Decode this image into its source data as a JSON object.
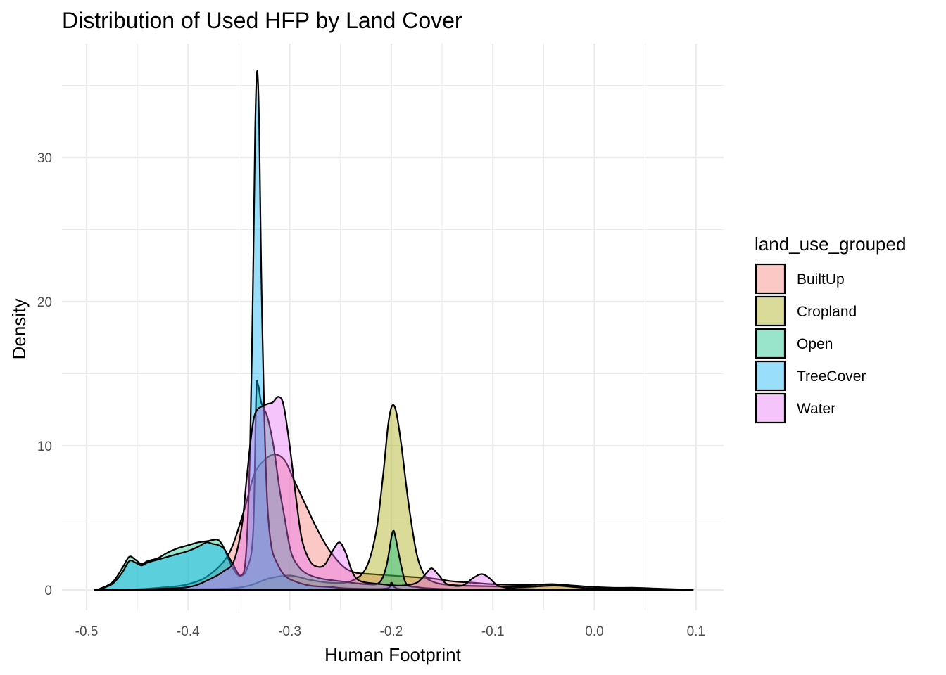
{
  "chart_data": {
    "type": "area",
    "title": "Distribution of Used HFP by Land Cover",
    "xlabel": "Human Footprint",
    "ylabel": "Density",
    "xlim": [
      -0.5,
      0.1
    ],
    "ylim": [
      0,
      36
    ],
    "x_ticks": [
      -0.5,
      -0.4,
      -0.3,
      -0.2,
      -0.1,
      0.0,
      0.1
    ],
    "x_tick_labels": [
      "-0.5",
      "-0.4",
      "-0.3",
      "-0.2",
      "-0.1",
      "0.0",
      "0.1"
    ],
    "y_ticks": [
      0,
      10,
      20,
      30
    ],
    "y_tick_labels": [
      "0",
      "10",
      "20",
      "30"
    ],
    "grid": true,
    "legend_position": "right",
    "legend_title": "land_use_grouped",
    "fill_opacity": 0.4,
    "series": [
      {
        "name": "BuiltUp",
        "color": "#F8766D",
        "points": [
          [
            -0.492,
            0
          ],
          [
            -0.45,
            0.05
          ],
          [
            -0.42,
            0.2
          ],
          [
            -0.4,
            0.4
          ],
          [
            -0.38,
            1.0
          ],
          [
            -0.36,
            2.5
          ],
          [
            -0.345,
            5.5
          ],
          [
            -0.335,
            8.0
          ],
          [
            -0.325,
            9.0
          ],
          [
            -0.315,
            9.4
          ],
          [
            -0.305,
            9.0
          ],
          [
            -0.295,
            7.5
          ],
          [
            -0.285,
            6.0
          ],
          [
            -0.275,
            4.5
          ],
          [
            -0.265,
            3.2
          ],
          [
            -0.255,
            2.2
          ],
          [
            -0.245,
            1.5
          ],
          [
            -0.235,
            1.2
          ],
          [
            -0.22,
            1.1
          ],
          [
            -0.2,
            1.0
          ],
          [
            -0.18,
            0.9
          ],
          [
            -0.16,
            0.8
          ],
          [
            -0.14,
            0.6
          ],
          [
            -0.12,
            0.5
          ],
          [
            -0.1,
            0.4
          ],
          [
            -0.08,
            0.35
          ],
          [
            -0.06,
            0.35
          ],
          [
            -0.04,
            0.4
          ],
          [
            -0.02,
            0.3
          ],
          [
            0,
            0.2
          ],
          [
            0.02,
            0.15
          ],
          [
            0.04,
            0.15
          ],
          [
            0.06,
            0.1
          ],
          [
            0.08,
            0.05
          ],
          [
            0.097,
            0
          ]
        ]
      },
      {
        "name": "Cropland",
        "color": "#A3A500",
        "points": [
          [
            -0.49,
            0
          ],
          [
            -0.4,
            0.05
          ],
          [
            -0.36,
            0.1
          ],
          [
            -0.34,
            0.3
          ],
          [
            -0.32,
            0.8
          ],
          [
            -0.3,
            1.0
          ],
          [
            -0.28,
            0.7
          ],
          [
            -0.26,
            0.5
          ],
          [
            -0.24,
            0.6
          ],
          [
            -0.225,
            1.5
          ],
          [
            -0.215,
            4.0
          ],
          [
            -0.208,
            8.0
          ],
          [
            -0.203,
            11.5
          ],
          [
            -0.199,
            12.8
          ],
          [
            -0.195,
            12.3
          ],
          [
            -0.19,
            10.0
          ],
          [
            -0.183,
            6.0
          ],
          [
            -0.175,
            2.5
          ],
          [
            -0.167,
            1.0
          ],
          [
            -0.16,
            0.6
          ],
          [
            -0.15,
            0.4
          ],
          [
            -0.13,
            0.3
          ],
          [
            -0.1,
            0.25
          ],
          [
            -0.07,
            0.2
          ],
          [
            -0.04,
            0.3
          ],
          [
            -0.02,
            0.2
          ],
          [
            0,
            0.1
          ],
          [
            0.03,
            0.1
          ],
          [
            0.06,
            0.05
          ],
          [
            0.09,
            0
          ]
        ]
      },
      {
        "name": "Open",
        "color": "#00BF7D",
        "points": [
          [
            -0.49,
            0
          ],
          [
            -0.475,
            0.5
          ],
          [
            -0.465,
            1.5
          ],
          [
            -0.458,
            2.3
          ],
          [
            -0.452,
            2.1
          ],
          [
            -0.446,
            1.8
          ],
          [
            -0.44,
            2.0
          ],
          [
            -0.43,
            2.2
          ],
          [
            -0.42,
            2.6
          ],
          [
            -0.41,
            2.9
          ],
          [
            -0.4,
            3.1
          ],
          [
            -0.39,
            3.3
          ],
          [
            -0.38,
            3.4
          ],
          [
            -0.372,
            3.5
          ],
          [
            -0.368,
            3.3
          ],
          [
            -0.364,
            2.8
          ],
          [
            -0.358,
            1.8
          ],
          [
            -0.35,
            1.0
          ],
          [
            -0.342,
            1.5
          ],
          [
            -0.336,
            4.0
          ],
          [
            -0.333,
            13.5
          ],
          [
            -0.331,
            14.2
          ],
          [
            -0.328,
            13.0
          ],
          [
            -0.322,
            12.0
          ],
          [
            -0.316,
            10.0
          ],
          [
            -0.31,
            7.0
          ],
          [
            -0.305,
            5.0
          ],
          [
            -0.3,
            3.0
          ],
          [
            -0.295,
            2.0
          ],
          [
            -0.285,
            1.2
          ],
          [
            -0.27,
            0.8
          ],
          [
            -0.25,
            0.6
          ],
          [
            -0.225,
            0.4
          ],
          [
            -0.212,
            0.5
          ],
          [
            -0.205,
            1.6
          ],
          [
            -0.2,
            3.6
          ],
          [
            -0.198,
            4.1
          ],
          [
            -0.196,
            3.7
          ],
          [
            -0.19,
            1.6
          ],
          [
            -0.185,
            0.4
          ],
          [
            -0.175,
            0.2
          ],
          [
            -0.16,
            0.1
          ],
          [
            -0.14,
            0.05
          ],
          [
            -0.12,
            0
          ]
        ]
      },
      {
        "name": "TreeCover",
        "color": "#00B0F6",
        "points": [
          [
            -0.49,
            0
          ],
          [
            -0.475,
            0.4
          ],
          [
            -0.465,
            1.2
          ],
          [
            -0.458,
            2.0
          ],
          [
            -0.452,
            1.9
          ],
          [
            -0.446,
            1.7
          ],
          [
            -0.44,
            1.9
          ],
          [
            -0.43,
            2.1
          ],
          [
            -0.42,
            2.3
          ],
          [
            -0.41,
            2.5
          ],
          [
            -0.4,
            2.7
          ],
          [
            -0.39,
            3.0
          ],
          [
            -0.382,
            3.3
          ],
          [
            -0.376,
            3.2
          ],
          [
            -0.37,
            3.1
          ],
          [
            -0.364,
            2.8
          ],
          [
            -0.356,
            1.8
          ],
          [
            -0.348,
            1.0
          ],
          [
            -0.343,
            2.5
          ],
          [
            -0.339,
            10.0
          ],
          [
            -0.336,
            22.0
          ],
          [
            -0.334,
            32.0
          ],
          [
            -0.332,
            36.0
          ],
          [
            -0.33,
            32.0
          ],
          [
            -0.328,
            22.0
          ],
          [
            -0.325,
            12.0
          ],
          [
            -0.322,
            6.0
          ],
          [
            -0.318,
            3.0
          ],
          [
            -0.312,
            1.8
          ],
          [
            -0.305,
            1.0
          ],
          [
            -0.295,
            0.6
          ],
          [
            -0.28,
            0.3
          ],
          [
            -0.26,
            0.2
          ],
          [
            -0.24,
            0.1
          ],
          [
            -0.205,
            0.1
          ],
          [
            -0.2,
            0.5
          ],
          [
            -0.197,
            0.2
          ],
          [
            -0.19,
            0.05
          ],
          [
            -0.17,
            0
          ]
        ]
      },
      {
        "name": "Water",
        "color": "#E76BF3",
        "points": [
          [
            -0.49,
            0
          ],
          [
            -0.44,
            0.05
          ],
          [
            -0.4,
            0.2
          ],
          [
            -0.38,
            0.7
          ],
          [
            -0.365,
            1.3
          ],
          [
            -0.355,
            2.0
          ],
          [
            -0.347,
            4.5
          ],
          [
            -0.342,
            8.0
          ],
          [
            -0.335,
            12.0
          ],
          [
            -0.325,
            12.8
          ],
          [
            -0.317,
            13.0
          ],
          [
            -0.311,
            13.4
          ],
          [
            -0.306,
            12.8
          ],
          [
            -0.3,
            10.0
          ],
          [
            -0.294,
            6.5
          ],
          [
            -0.288,
            3.5
          ],
          [
            -0.28,
            2.0
          ],
          [
            -0.272,
            1.6
          ],
          [
            -0.265,
            1.8
          ],
          [
            -0.257,
            2.8
          ],
          [
            -0.251,
            3.3
          ],
          [
            -0.245,
            2.6
          ],
          [
            -0.238,
            1.2
          ],
          [
            -0.23,
            0.6
          ],
          [
            -0.21,
            0.4
          ],
          [
            -0.19,
            0.3
          ],
          [
            -0.175,
            0.5
          ],
          [
            -0.165,
            1.2
          ],
          [
            -0.16,
            1.5
          ],
          [
            -0.153,
            1.0
          ],
          [
            -0.145,
            0.4
          ],
          [
            -0.13,
            0.3
          ],
          [
            -0.12,
            0.8
          ],
          [
            -0.111,
            1.1
          ],
          [
            -0.103,
            0.8
          ],
          [
            -0.095,
            0.3
          ],
          [
            -0.08,
            0.1
          ],
          [
            -0.06,
            0.05
          ],
          [
            -0.04,
            0
          ]
        ]
      }
    ]
  }
}
